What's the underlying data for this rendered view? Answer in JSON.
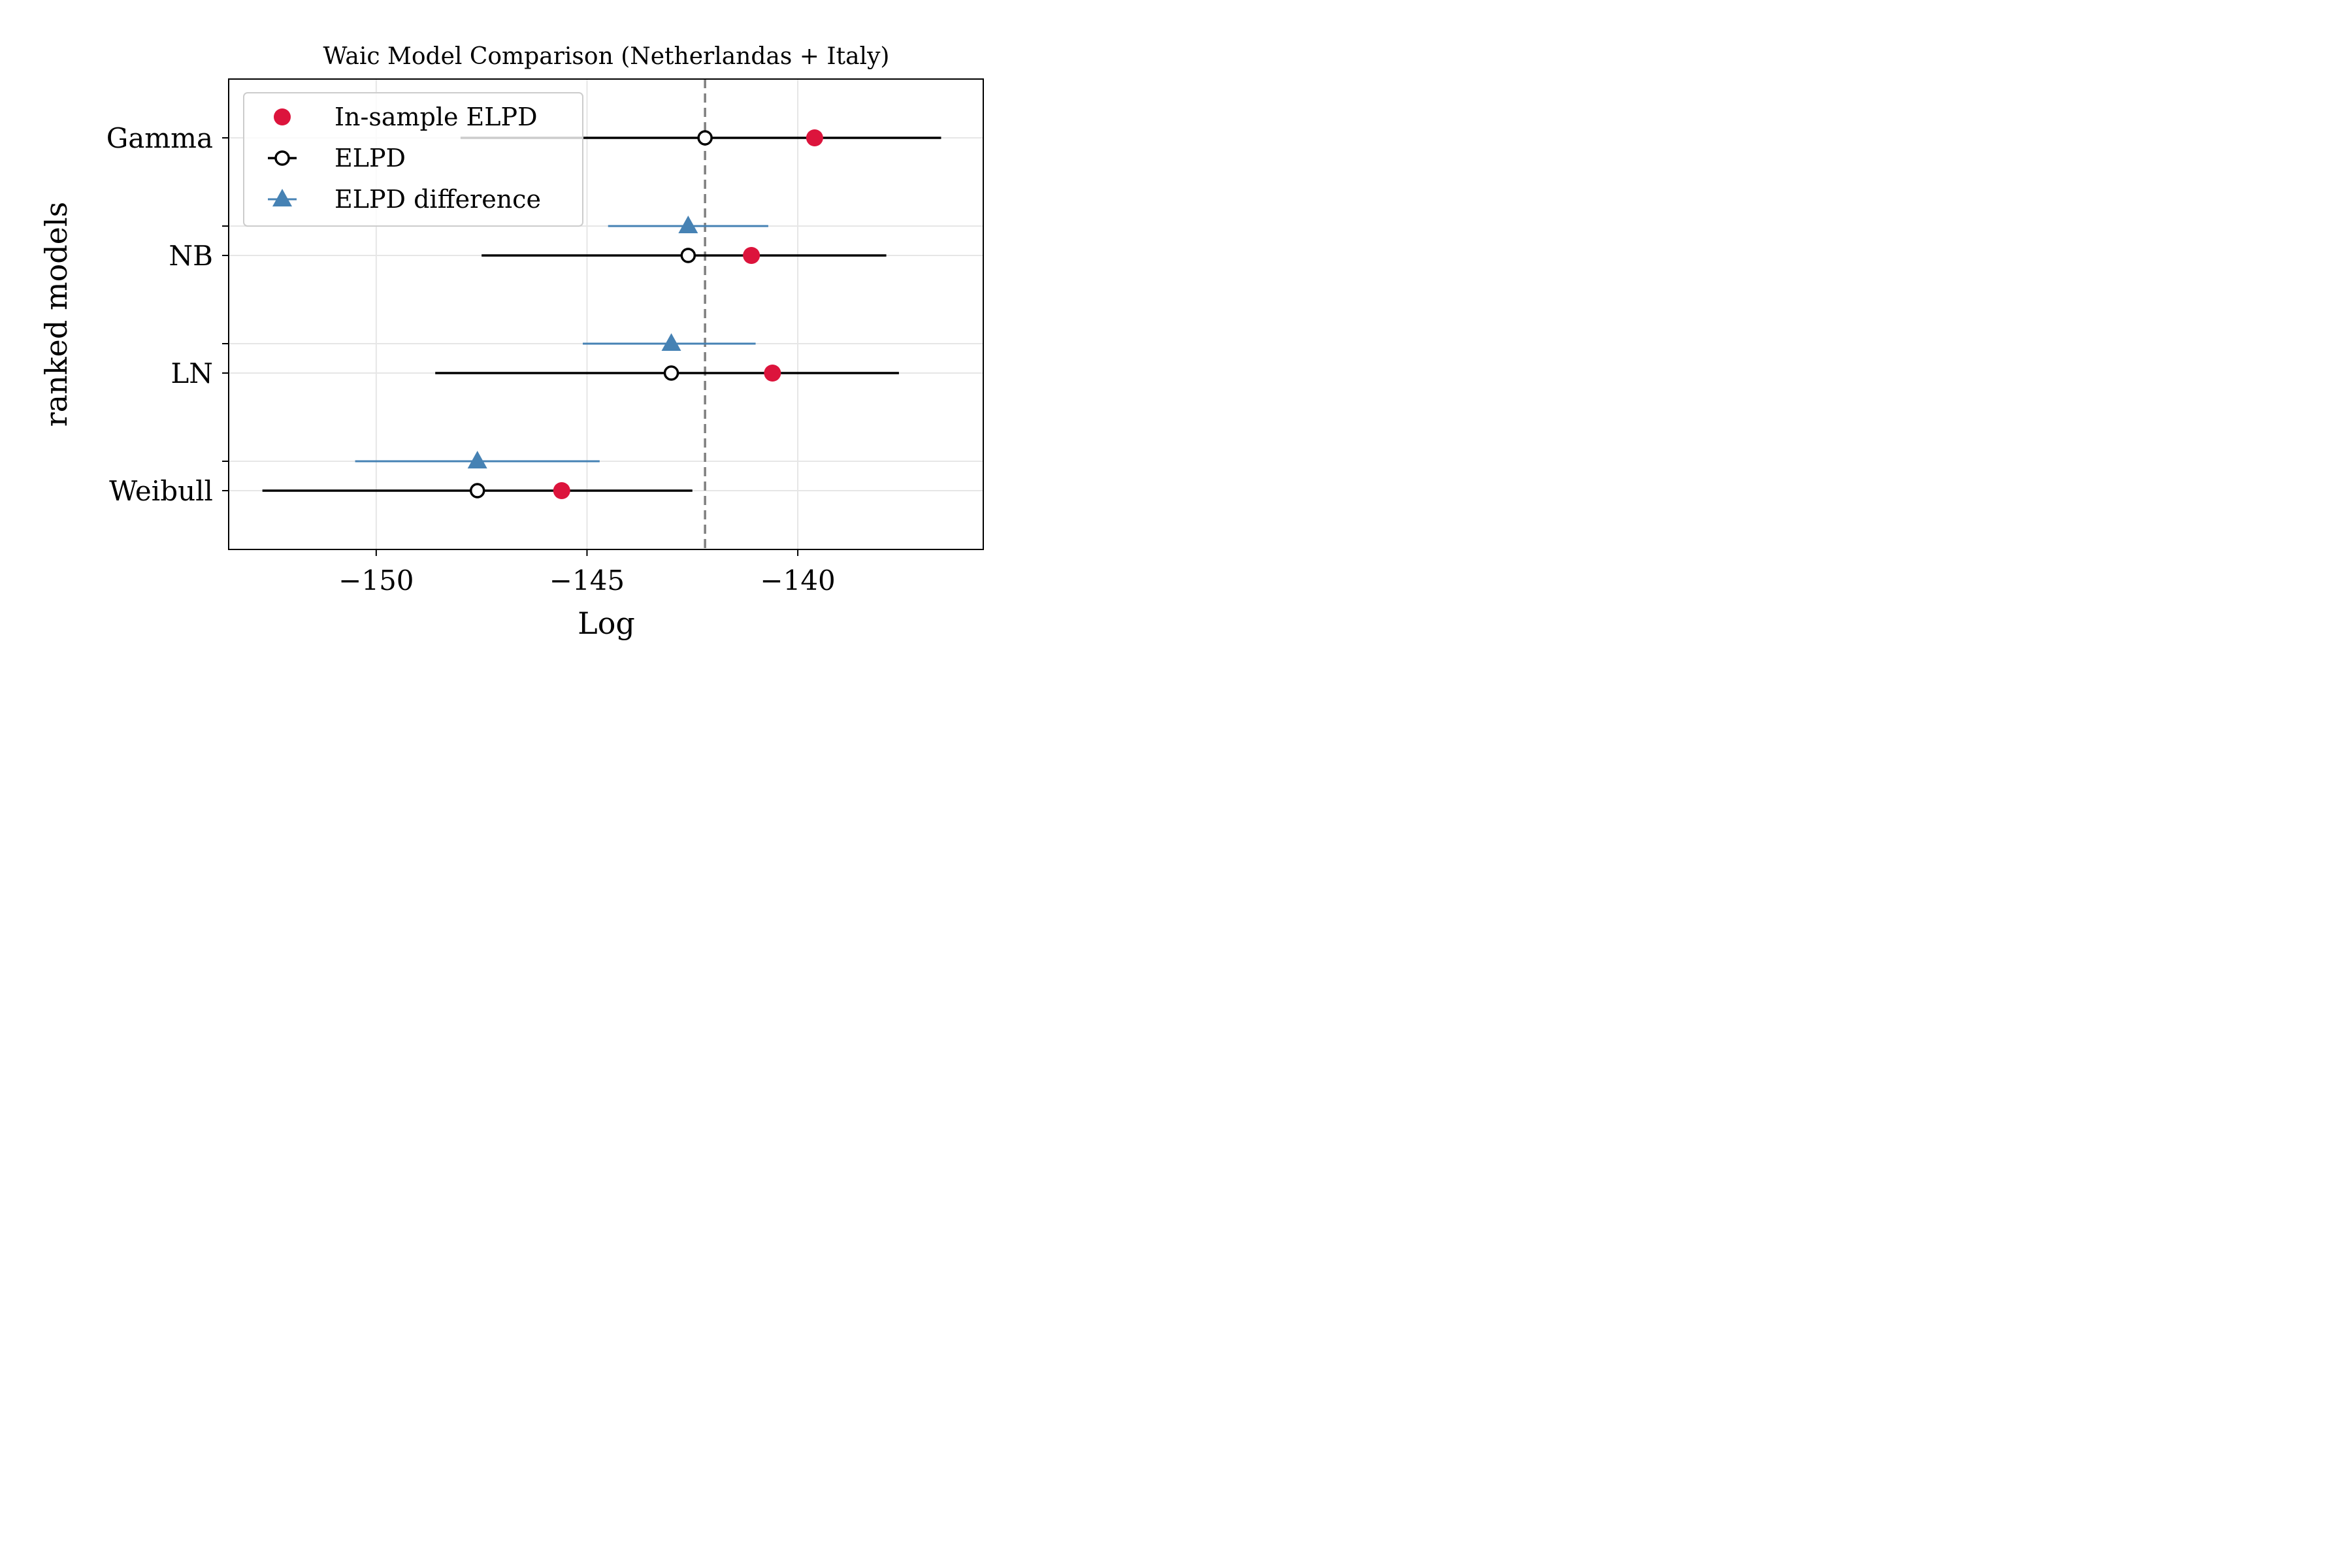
{
  "chart_data": {
    "type": "scatter",
    "title": "Waic Model Comparison (Netherlandas + Italy)",
    "xlabel": "Log",
    "ylabel": "ranked models",
    "xlim": [
      -153.5,
      -135.6
    ],
    "xticks": [
      -150,
      -145,
      -140
    ],
    "xtick_labels": [
      "−150",
      "−145",
      "−140"
    ],
    "grid": true,
    "legend_position": "upper-left",
    "reference_line": {
      "x": -142.2,
      "style": "dashed",
      "color": "#808080"
    },
    "models": [
      "Gamma",
      "NB",
      "LN",
      "Weibull"
    ],
    "series": [
      {
        "name": "In-sample ELPD",
        "marker": "filled-circle",
        "color": "#dc143c",
        "values": [
          -139.6,
          -141.1,
          -140.6,
          -145.6
        ]
      },
      {
        "name": "ELPD",
        "marker": "open-circle",
        "color": "#000000",
        "values": [
          -142.2,
          -142.6,
          -143.0,
          -147.6
        ],
        "error_low": [
          -148.0,
          -147.5,
          -148.6,
          -152.7
        ],
        "error_high": [
          -136.6,
          -137.9,
          -137.6,
          -142.5
        ]
      },
      {
        "name": "ELPD difference",
        "marker": "triangle",
        "color": "#4682b4",
        "models": [
          "NB",
          "LN",
          "Weibull"
        ],
        "values": [
          -142.6,
          -143.0,
          -147.6
        ],
        "error_low": [
          -144.5,
          -145.1,
          -150.5
        ],
        "error_high": [
          -140.7,
          -141.0,
          -144.7
        ]
      }
    ]
  }
}
